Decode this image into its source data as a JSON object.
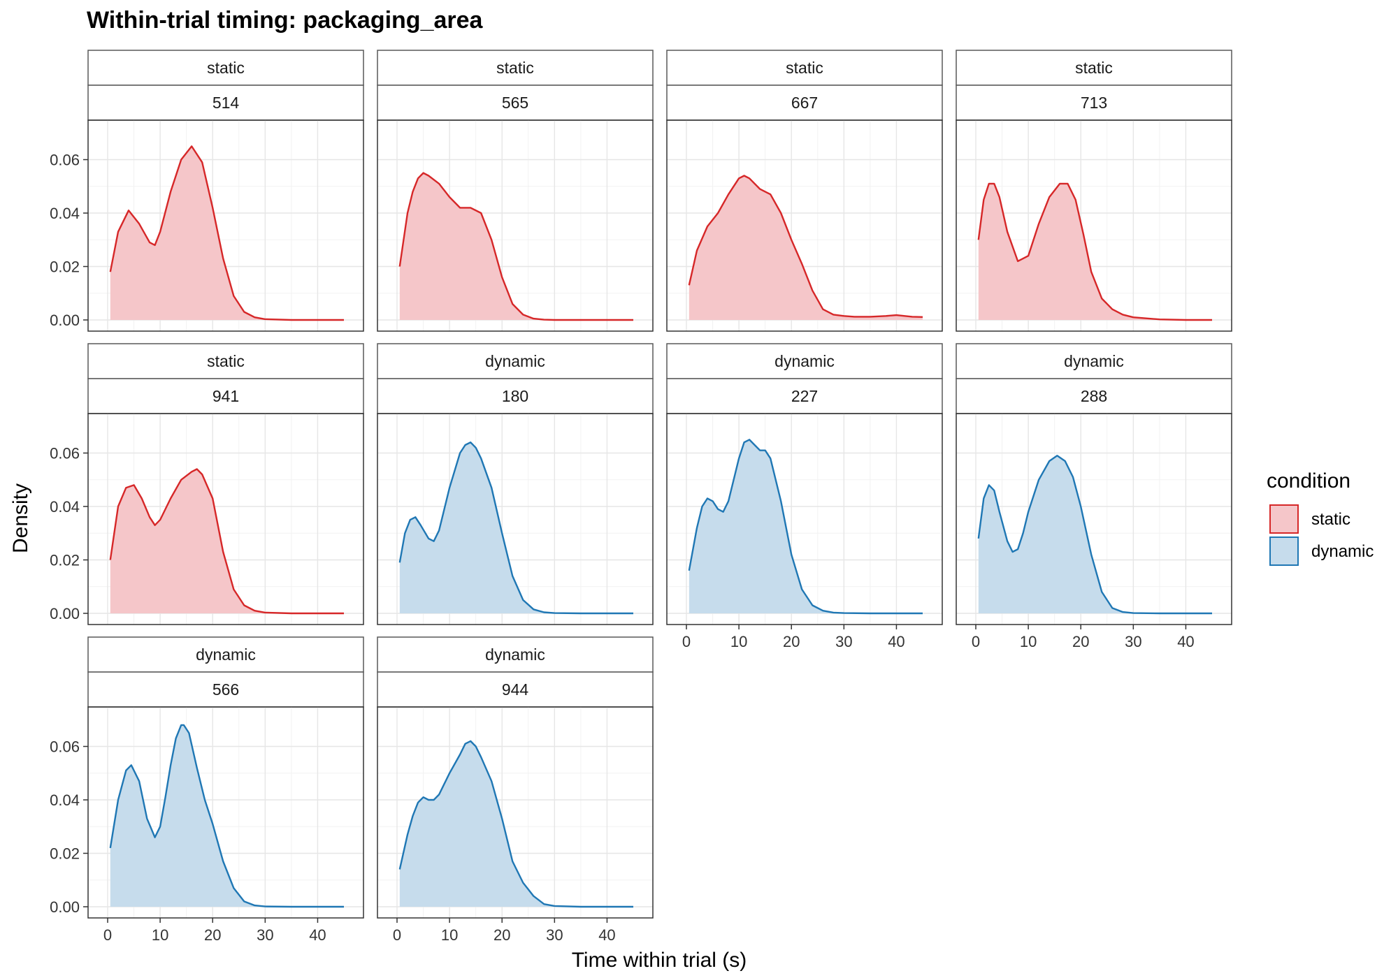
{
  "chart_data": {
    "type": "area",
    "title": "Within-trial timing: packaging_area",
    "xlabel": "Time within trial (s)",
    "ylabel": "Density",
    "xlim": [
      0,
      45
    ],
    "ylim": [
      0,
      0.07
    ],
    "x_ticks": [
      "0",
      "10",
      "20",
      "30",
      "40"
    ],
    "y_ticks": [
      "0.00",
      "0.02",
      "0.04",
      "0.06"
    ],
    "x_tick_values": [
      0,
      10,
      20,
      30,
      40
    ],
    "y_tick_values": [
      0,
      0.02,
      0.04,
      0.06
    ],
    "grid": true,
    "legend": {
      "title": "condition",
      "position": "right",
      "entries": [
        {
          "label": "static",
          "line": "#d62728",
          "fill": "#f5c6c9"
        },
        {
          "label": "dynamic",
          "line": "#1f77b4",
          "fill": "#c6dcec"
        }
      ]
    },
    "panels": [
      {
        "condition": "static",
        "id": "514",
        "x": [
          0.5,
          2,
          4,
          6,
          8,
          9,
          10,
          12,
          14,
          16,
          18,
          20,
          22,
          24,
          26,
          28,
          30,
          35,
          40,
          45
        ],
        "y": [
          0.018,
          0.033,
          0.041,
          0.036,
          0.029,
          0.028,
          0.033,
          0.048,
          0.06,
          0.065,
          0.059,
          0.042,
          0.023,
          0.009,
          0.003,
          0.001,
          0.0003,
          0,
          0,
          0
        ]
      },
      {
        "condition": "static",
        "id": "565",
        "x": [
          0.5,
          2,
          3,
          4,
          5,
          6,
          8,
          10,
          12,
          14,
          16,
          18,
          20,
          22,
          24,
          26,
          28,
          30,
          35,
          40,
          45
        ],
        "y": [
          0.02,
          0.04,
          0.048,
          0.053,
          0.055,
          0.054,
          0.051,
          0.046,
          0.042,
          0.042,
          0.04,
          0.03,
          0.016,
          0.006,
          0.002,
          0.0005,
          0.0001,
          0,
          0,
          0,
          0
        ]
      },
      {
        "condition": "static",
        "id": "667",
        "x": [
          0.5,
          2,
          4,
          6,
          8,
          10,
          11,
          12,
          14,
          15,
          16,
          18,
          20,
          22,
          24,
          26,
          28,
          30,
          32,
          35,
          38,
          40,
          43,
          45
        ],
        "y": [
          0.013,
          0.026,
          0.035,
          0.04,
          0.047,
          0.053,
          0.054,
          0.053,
          0.049,
          0.048,
          0.047,
          0.04,
          0.03,
          0.021,
          0.011,
          0.004,
          0.002,
          0.0015,
          0.0012,
          0.0012,
          0.0015,
          0.0018,
          0.0012,
          0.0011
        ]
      },
      {
        "condition": "static",
        "id": "713",
        "x": [
          0.5,
          1.5,
          2.5,
          3.5,
          4.5,
          6,
          8,
          10,
          12,
          14,
          16,
          17.5,
          19,
          20.5,
          22,
          24,
          26,
          28,
          30,
          35,
          40,
          45
        ],
        "y": [
          0.03,
          0.045,
          0.051,
          0.051,
          0.046,
          0.033,
          0.022,
          0.024,
          0.036,
          0.046,
          0.051,
          0.051,
          0.045,
          0.032,
          0.018,
          0.008,
          0.004,
          0.002,
          0.001,
          0.0002,
          0,
          0
        ]
      },
      {
        "condition": "static",
        "id": "941",
        "x": [
          0.5,
          2,
          3.5,
          5,
          6.5,
          8,
          9,
          10,
          12,
          14,
          16,
          17,
          18,
          20,
          22,
          24,
          26,
          28,
          30,
          35,
          40,
          45
        ],
        "y": [
          0.02,
          0.04,
          0.047,
          0.048,
          0.043,
          0.036,
          0.033,
          0.035,
          0.043,
          0.05,
          0.053,
          0.054,
          0.052,
          0.043,
          0.023,
          0.009,
          0.003,
          0.001,
          0.0003,
          0,
          0,
          0
        ]
      },
      {
        "condition": "dynamic",
        "id": "180",
        "x": [
          0.5,
          1.5,
          2.5,
          3.5,
          4.5,
          6,
          7,
          8,
          10,
          12,
          13,
          14,
          15,
          16,
          18,
          20,
          22,
          24,
          26,
          28,
          30,
          35,
          40,
          45
        ],
        "y": [
          0.019,
          0.03,
          0.035,
          0.036,
          0.033,
          0.028,
          0.027,
          0.031,
          0.047,
          0.06,
          0.063,
          0.064,
          0.062,
          0.058,
          0.047,
          0.03,
          0.014,
          0.005,
          0.0015,
          0.0004,
          0.0001,
          0,
          0,
          0
        ]
      },
      {
        "condition": "dynamic",
        "id": "227",
        "x": [
          0.5,
          2,
          3,
          4,
          5,
          6,
          7,
          8,
          10,
          11,
          12,
          13,
          14,
          15,
          16,
          18,
          20,
          22,
          24,
          26,
          28,
          30,
          35,
          40,
          45
        ],
        "y": [
          0.016,
          0.032,
          0.04,
          0.043,
          0.042,
          0.039,
          0.038,
          0.042,
          0.058,
          0.064,
          0.065,
          0.063,
          0.061,
          0.061,
          0.058,
          0.042,
          0.022,
          0.009,
          0.003,
          0.001,
          0.0003,
          0.0001,
          0,
          0,
          0
        ]
      },
      {
        "condition": "dynamic",
        "id": "288",
        "x": [
          0.5,
          1.5,
          2.5,
          3.5,
          4.5,
          6,
          7,
          8,
          9,
          10,
          12,
          14,
          15.5,
          17,
          18.5,
          20,
          22,
          24,
          26,
          28,
          30,
          35,
          40,
          45
        ],
        "y": [
          0.028,
          0.043,
          0.048,
          0.046,
          0.038,
          0.027,
          0.023,
          0.024,
          0.03,
          0.038,
          0.05,
          0.057,
          0.059,
          0.057,
          0.051,
          0.04,
          0.022,
          0.008,
          0.002,
          0.0005,
          0.0001,
          0,
          0,
          0
        ]
      },
      {
        "condition": "dynamic",
        "id": "566",
        "x": [
          0.5,
          2,
          3.5,
          4.5,
          6,
          7.5,
          9,
          10,
          11,
          12,
          13,
          14,
          14.5,
          15.5,
          17,
          18.5,
          20,
          22,
          24,
          26,
          28,
          30,
          35,
          40,
          45
        ],
        "y": [
          0.022,
          0.04,
          0.051,
          0.053,
          0.047,
          0.033,
          0.026,
          0.03,
          0.041,
          0.053,
          0.063,
          0.068,
          0.068,
          0.065,
          0.052,
          0.04,
          0.031,
          0.017,
          0.007,
          0.002,
          0.0005,
          0.0001,
          0,
          0,
          0
        ]
      },
      {
        "condition": "dynamic",
        "id": "944",
        "x": [
          0.5,
          2,
          3,
          4,
          5,
          6,
          7,
          8,
          10,
          12,
          13,
          14,
          15,
          16,
          18,
          20,
          22,
          24,
          26,
          28,
          30,
          35,
          40,
          45
        ],
        "y": [
          0.014,
          0.027,
          0.034,
          0.039,
          0.041,
          0.04,
          0.04,
          0.042,
          0.05,
          0.057,
          0.061,
          0.062,
          0.06,
          0.056,
          0.047,
          0.033,
          0.017,
          0.009,
          0.004,
          0.001,
          0.0003,
          0,
          0,
          0
        ]
      }
    ]
  }
}
